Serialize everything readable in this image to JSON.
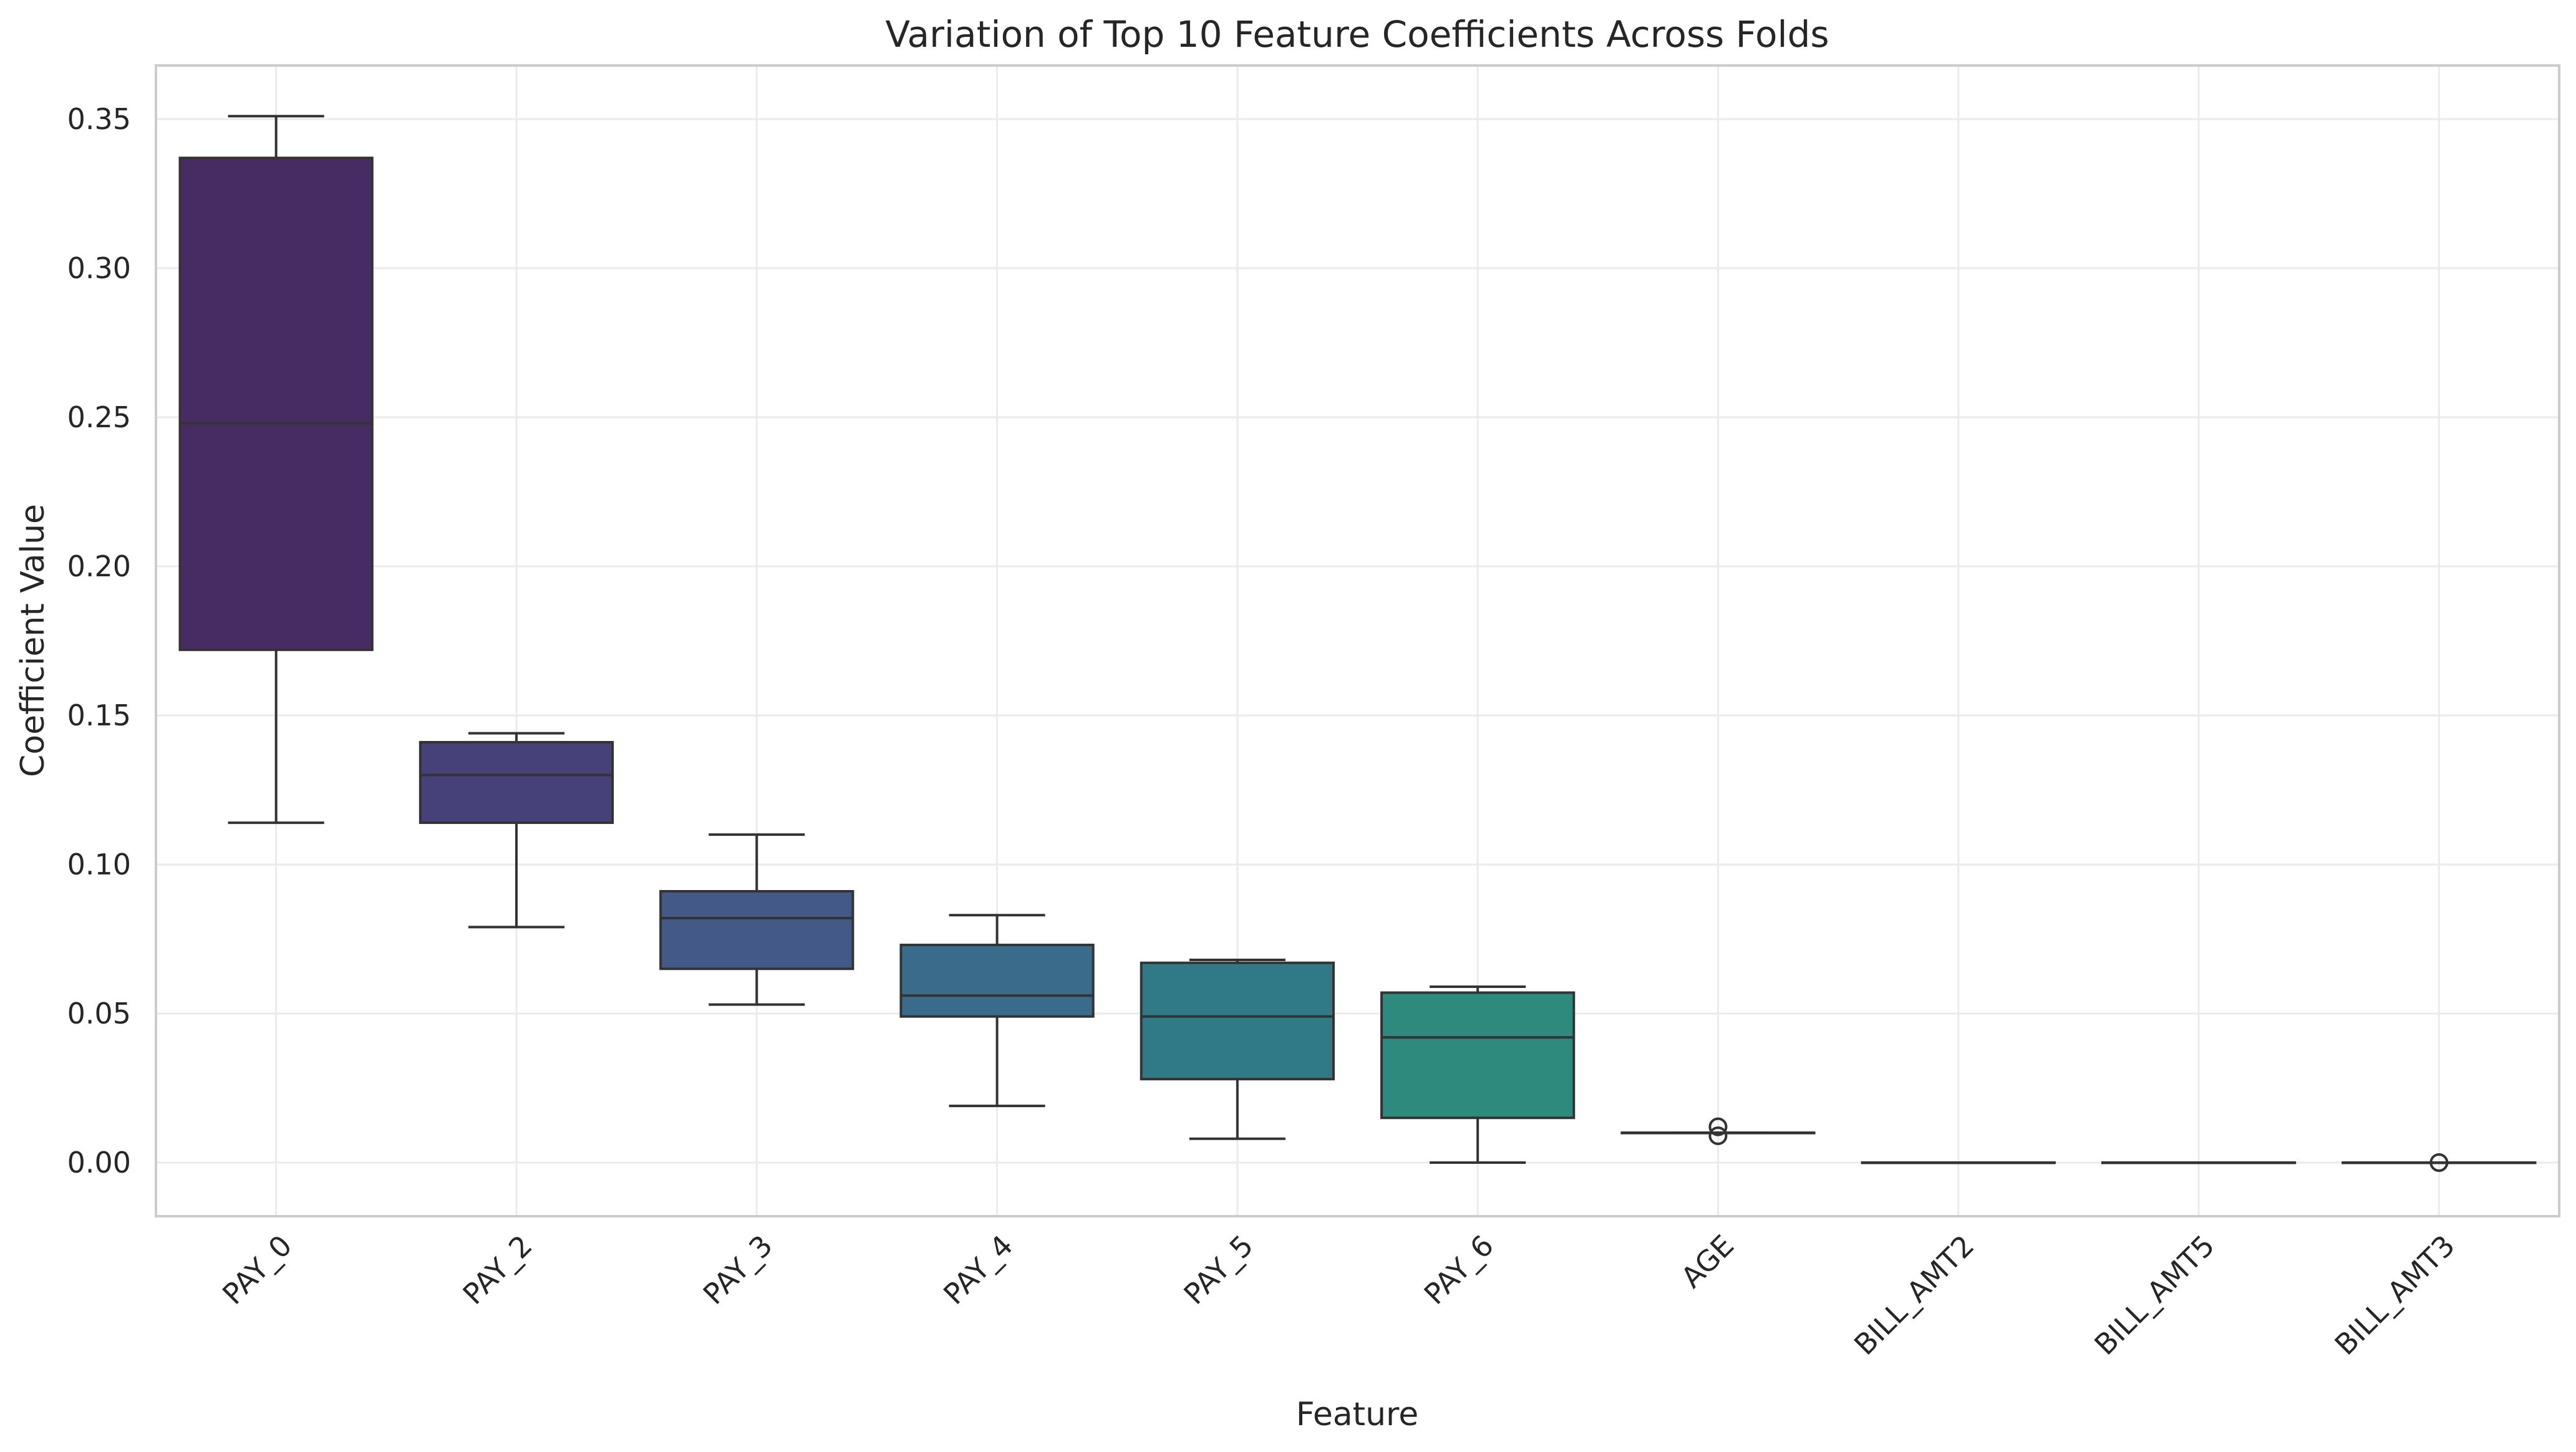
{
  "chart_data": {
    "type": "boxplot",
    "title": "Variation of Top 10 Feature Coefficients Across Folds",
    "xlabel": "Feature",
    "ylabel": "Coefficient Value",
    "ylim": [
      -0.018,
      0.368
    ],
    "yticks": [
      0.0,
      0.05,
      0.1,
      0.15,
      0.2,
      0.25,
      0.3,
      0.35
    ],
    "ytick_labels": [
      "0.00",
      "0.05",
      "0.10",
      "0.15",
      "0.20",
      "0.25",
      "0.30",
      "0.35"
    ],
    "grid": true,
    "legend": "none",
    "categories": [
      "PAY_0",
      "PAY_2",
      "PAY_3",
      "PAY_4",
      "PAY_5",
      "PAY_6",
      "AGE",
      "BILL_AMT2",
      "BILL_AMT5",
      "BILL_AMT3"
    ],
    "boxes": [
      {
        "whisker_low": 0.114,
        "q1": 0.172,
        "median": 0.248,
        "q3": 0.337,
        "whisker_high": 0.351,
        "outliers": [],
        "color": "#472c63"
      },
      {
        "whisker_low": 0.079,
        "q1": 0.114,
        "median": 0.13,
        "q3": 0.141,
        "whisker_high": 0.144,
        "outliers": [],
        "color": "#47417a"
      },
      {
        "whisker_low": 0.053,
        "q1": 0.065,
        "median": 0.082,
        "q3": 0.091,
        "whisker_high": 0.11,
        "outliers": [],
        "color": "#435987"
      },
      {
        "whisker_low": 0.019,
        "q1": 0.049,
        "median": 0.056,
        "q3": 0.073,
        "whisker_high": 0.083,
        "outliers": [],
        "color": "#3a6b8b"
      },
      {
        "whisker_low": 0.008,
        "q1": 0.028,
        "median": 0.049,
        "q3": 0.067,
        "whisker_high": 0.068,
        "outliers": [],
        "color": "#307a87"
      },
      {
        "whisker_low": 0.0,
        "q1": 0.015,
        "median": 0.042,
        "q3": 0.057,
        "whisker_high": 0.059,
        "outliers": [],
        "color": "#2e8a7c"
      },
      {
        "whisker_low": 0.01,
        "q1": 0.01,
        "median": 0.01,
        "q3": 0.01,
        "whisker_high": 0.01,
        "outliers": [
          0.012,
          0.009
        ],
        "color": "#36a06d"
      },
      {
        "whisker_low": 0.0,
        "q1": 0.0,
        "median": 0.0,
        "q3": 0.0,
        "whisker_high": 0.0,
        "outliers": [],
        "color": "#4fad62"
      },
      {
        "whisker_low": 0.0,
        "q1": 0.0,
        "median": 0.0,
        "q3": 0.0,
        "whisker_high": 0.0,
        "outliers": [],
        "color": "#6cbb53"
      },
      {
        "whisker_low": 0.0,
        "q1": 0.0,
        "median": 0.0,
        "q3": 0.0,
        "whisker_high": 0.0,
        "outliers": [
          0.0
        ],
        "color": "#96c743"
      }
    ]
  }
}
